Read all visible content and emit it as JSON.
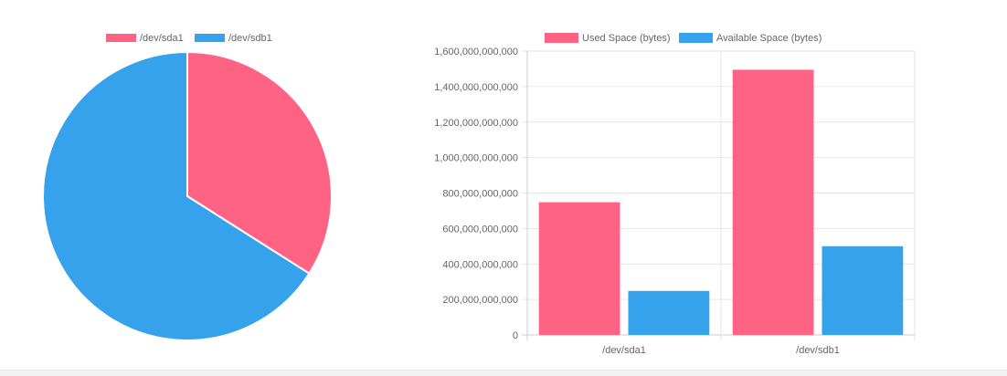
{
  "colors": {
    "red": "#ff6384",
    "blue": "#36a2eb",
    "grid": "#e6e6e6",
    "text": "#666666"
  },
  "chart_data": [
    {
      "type": "pie",
      "labels": [
        "/dev/sda1",
        "/dev/sdb1"
      ],
      "values": [
        34,
        66
      ],
      "colors": [
        "#ff6384",
        "#36a2eb"
      ],
      "legend": "top"
    },
    {
      "type": "bar",
      "categories": [
        "/dev/sda1",
        "/dev/sdb1"
      ],
      "series": [
        {
          "name": "Used Space (bytes)",
          "values": [
            748000000000,
            1495000000000
          ],
          "color": "#ff6384"
        },
        {
          "name": "Available Space (bytes)",
          "values": [
            248000000000,
            500000000000
          ],
          "color": "#36a2eb"
        }
      ],
      "ylim": [
        0,
        1600000000000
      ],
      "yticks": [
        0,
        200000000000,
        400000000000,
        600000000000,
        800000000000,
        1000000000000,
        1200000000000,
        1400000000000,
        1600000000000
      ],
      "ytick_labels": [
        "0",
        "200,000,000,000",
        "400,000,000,000",
        "600,000,000,000",
        "800,000,000,000",
        "1,000,000,000,000",
        "1,200,000,000,000",
        "1,400,000,000,000",
        "1,600,000,000,000"
      ],
      "grid": true,
      "legend": "top"
    }
  ]
}
